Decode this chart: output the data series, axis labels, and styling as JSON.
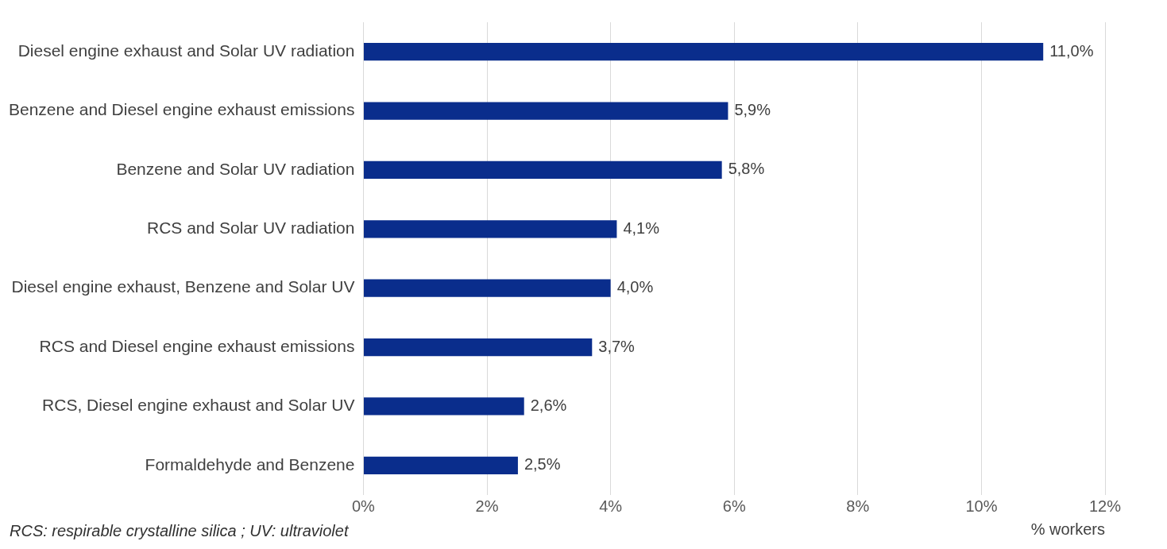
{
  "chart_data": {
    "type": "bar",
    "orientation": "horizontal",
    "categories": [
      "Diesel engine exhaust and Solar UV radiation",
      "Benzene and Diesel engine exhaust emissions",
      "Benzene and Solar UV radiation",
      "RCS and Solar UV radiation",
      "Diesel engine exhaust, Benzene and Solar UV",
      "RCS and Diesel engine exhaust emissions",
      "RCS, Diesel engine exhaust and Solar UV",
      "Formaldehyde and Benzene"
    ],
    "values": [
      11.0,
      5.9,
      5.8,
      4.1,
      4.0,
      3.7,
      2.6,
      2.5
    ],
    "value_labels": [
      "11,0%",
      "5,9%",
      "5,8%",
      "4,1%",
      "4,0%",
      "3,7%",
      "2,6%",
      "2,5%"
    ],
    "color": "#0a2d8c",
    "xlim": [
      0,
      12
    ],
    "xticks": [
      {
        "value": 0,
        "label": "0%"
      },
      {
        "value": 2,
        "label": "2%"
      },
      {
        "value": 4,
        "label": "4%"
      },
      {
        "value": 6,
        "label": "6%"
      },
      {
        "value": 8,
        "label": "8%"
      },
      {
        "value": 10,
        "label": "10%"
      },
      {
        "value": 12,
        "label": "12%"
      }
    ],
    "xlabel": "% workers",
    "grid": "x",
    "legend": false,
    "annotations": [
      "RCS: respirable crystalline silica ; UV: ultraviolet"
    ]
  }
}
